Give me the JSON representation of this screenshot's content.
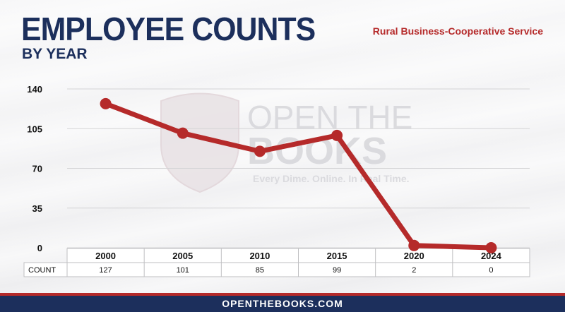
{
  "header": {
    "title": "EMPLOYEE COUNTS",
    "subtitle": "BY YEAR",
    "agency": "Rural Business-Cooperative Service"
  },
  "watermark": {
    "line1": "OPEN THE",
    "line2": "BOOKS",
    "tagline": "Every Dime. Online. In Real Time."
  },
  "footer": {
    "site": "OPENTHEBOOKS.COM"
  },
  "colors": {
    "line": "#b52a2a",
    "title": "#1c2f5c",
    "footer": "#1c2f5c",
    "accent": "#b52a2a"
  },
  "chart_data": {
    "type": "line",
    "categories": [
      "2000",
      "2005",
      "2010",
      "2015",
      "2020",
      "2024"
    ],
    "series": [
      {
        "name": "COUNT",
        "values": [
          127,
          101,
          85,
          99,
          2,
          0
        ]
      }
    ],
    "yticks": [
      0,
      35,
      70,
      105,
      140
    ],
    "ylim": [
      0,
      140
    ],
    "grid": true,
    "table_row_label": "COUNT"
  }
}
